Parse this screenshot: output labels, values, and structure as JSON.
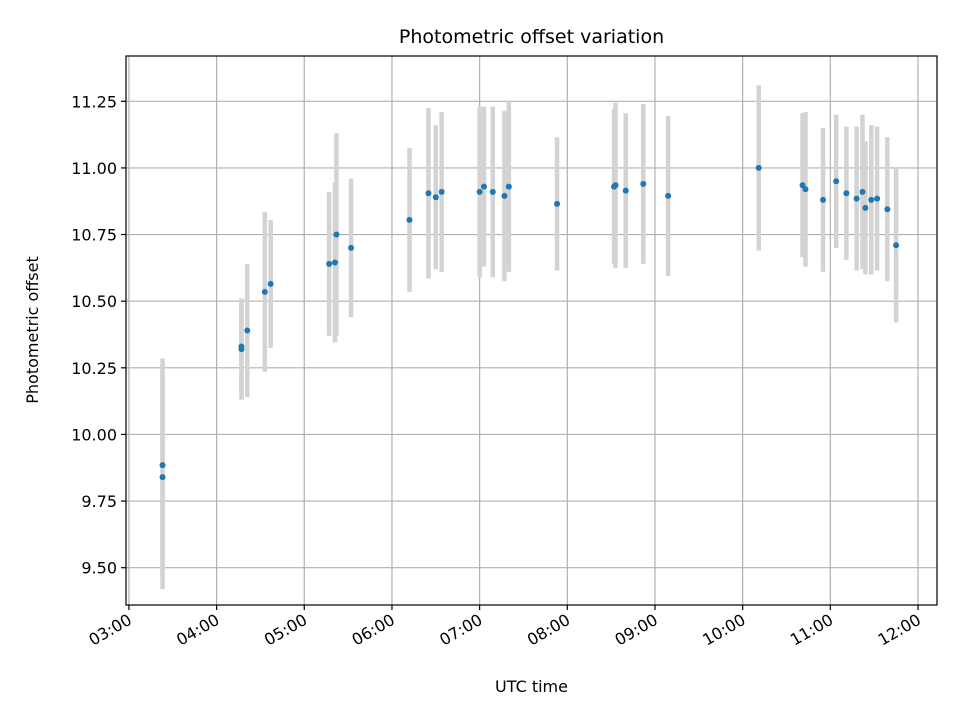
{
  "chart_data": {
    "type": "scatter",
    "title": "Photometric offset variation",
    "xlabel": "UTC time",
    "ylabel": "Photometric offset",
    "x_unit": "hours UTC",
    "xlim": [
      "02:58",
      "12:13"
    ],
    "ylim": [
      9.36,
      11.42
    ],
    "x_ticks": [
      "03:00",
      "04:00",
      "05:00",
      "06:00",
      "07:00",
      "08:00",
      "09:00",
      "10:00",
      "11:00",
      "12:00"
    ],
    "y_ticks": [
      "9.50",
      "9.75",
      "10.00",
      "10.25",
      "10.50",
      "10.75",
      "11.00",
      "11.25"
    ],
    "grid": true,
    "errorbar_color": "#d3d3d3",
    "point_color": "#1f77b4",
    "points": [
      {
        "x": "03:23",
        "y": 9.885,
        "err": 0.4
      },
      {
        "x": "03:23",
        "y": 9.84,
        "err": 0.42
      },
      {
        "x": "04:17",
        "y": 10.32,
        "err": 0.19
      },
      {
        "x": "04:17",
        "y": 10.33,
        "err": 0.18
      },
      {
        "x": "04:21",
        "y": 10.39,
        "err": 0.25
      },
      {
        "x": "04:33",
        "y": 10.535,
        "err": 0.3
      },
      {
        "x": "04:37",
        "y": 10.565,
        "err": 0.24
      },
      {
        "x": "05:17",
        "y": 10.64,
        "err": 0.27
      },
      {
        "x": "05:21",
        "y": 10.645,
        "err": 0.3
      },
      {
        "x": "05:22",
        "y": 10.75,
        "err": 0.38
      },
      {
        "x": "05:32",
        "y": 10.7,
        "err": 0.26
      },
      {
        "x": "06:12",
        "y": 10.805,
        "err": 0.27
      },
      {
        "x": "06:25",
        "y": 10.905,
        "err": 0.32
      },
      {
        "x": "06:30",
        "y": 10.89,
        "err": 0.27
      },
      {
        "x": "06:34",
        "y": 10.91,
        "err": 0.3
      },
      {
        "x": "07:00",
        "y": 10.91,
        "err": 0.32
      },
      {
        "x": "07:03",
        "y": 10.93,
        "err": 0.3
      },
      {
        "x": "07:09",
        "y": 10.91,
        "err": 0.32
      },
      {
        "x": "07:17",
        "y": 10.895,
        "err": 0.32
      },
      {
        "x": "07:20",
        "y": 10.93,
        "err": 0.32
      },
      {
        "x": "07:53",
        "y": 10.865,
        "err": 0.25
      },
      {
        "x": "08:32",
        "y": 10.93,
        "err": 0.29
      },
      {
        "x": "08:33",
        "y": 10.935,
        "err": 0.31
      },
      {
        "x": "08:40",
        "y": 10.915,
        "err": 0.29
      },
      {
        "x": "08:52",
        "y": 10.94,
        "err": 0.3
      },
      {
        "x": "09:09",
        "y": 10.895,
        "err": 0.3
      },
      {
        "x": "10:11",
        "y": 11.0,
        "err": 0.31
      },
      {
        "x": "10:41",
        "y": 10.935,
        "err": 0.27
      },
      {
        "x": "10:43",
        "y": 10.92,
        "err": 0.29
      },
      {
        "x": "10:55",
        "y": 10.88,
        "err": 0.27
      },
      {
        "x": "11:04",
        "y": 10.95,
        "err": 0.25
      },
      {
        "x": "11:11",
        "y": 10.905,
        "err": 0.25
      },
      {
        "x": "11:18",
        "y": 10.885,
        "err": 0.27
      },
      {
        "x": "11:22",
        "y": 10.91,
        "err": 0.29
      },
      {
        "x": "11:24",
        "y": 10.85,
        "err": 0.25
      },
      {
        "x": "11:28",
        "y": 10.88,
        "err": 0.28
      },
      {
        "x": "11:32",
        "y": 10.885,
        "err": 0.27
      },
      {
        "x": "11:39",
        "y": 10.845,
        "err": 0.27
      },
      {
        "x": "11:45",
        "y": 10.71,
        "err": 0.29
      }
    ]
  }
}
